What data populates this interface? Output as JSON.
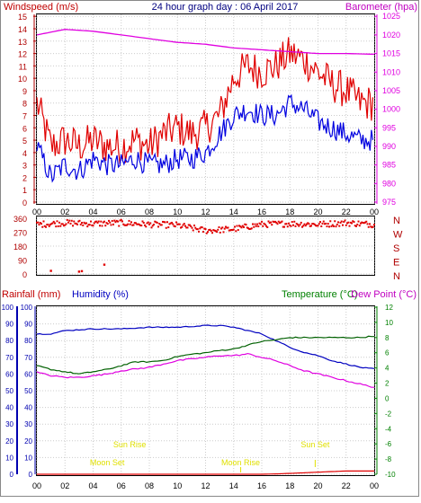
{
  "header": {
    "left_label": "Windspeed (m/s)",
    "title": "24 hour graph day : 06 April 2017",
    "right_label": "Barometer (hpa)"
  },
  "bottom_header": {
    "rainfall_label": "Rainfall (mm)",
    "humidity_label": "Humidity (%)",
    "temperature_label": "Temperature (°C)",
    "dewpoint_label": "Dew Point (°C)"
  },
  "colors": {
    "wind_max": "#e00000",
    "wind_avg": "#0000e0",
    "barometer": "#e000e0",
    "direction": "#e00000",
    "rain_axis": "#0000b0",
    "humidity_line": "#0000c0",
    "temperature": "#006000",
    "dewpoint": "#e000e0",
    "rain_line": "#e00000",
    "sun_moon": "#e0e000",
    "temp_axis": "#008000",
    "left_axis_red": "#b00000"
  },
  "chart_data": [
    {
      "type": "line",
      "x_tick_labels": [
        "00",
        "02",
        "04",
        "06",
        "08",
        "10",
        "12",
        "14",
        "16",
        "18",
        "20",
        "22",
        "00"
      ],
      "y_left_ticks": [
        "0",
        "1",
        "2",
        "3",
        "4",
        "5",
        "6",
        "7",
        "8",
        "9",
        "10",
        "11",
        "12",
        "13",
        "14",
        "15"
      ],
      "y_right_ticks": [
        "975",
        "980",
        "985",
        "990",
        "995",
        "1000",
        "1005",
        "1010",
        "1015",
        "1020",
        "1025"
      ],
      "ylim_left": [
        0,
        15
      ],
      "ylim_right": [
        975,
        1025
      ],
      "grid": true,
      "series": [
        {
          "values_hours": [
            0,
            1,
            2,
            3,
            4,
            5,
            6,
            7,
            8,
            9,
            10,
            11,
            12,
            13,
            14,
            15,
            16,
            17,
            18,
            19,
            20,
            21,
            22,
            23,
            24
          ],
          "values": [
            8,
            4.5,
            5,
            4.5,
            5,
            4.5,
            4.5,
            5,
            4.5,
            5.5,
            6,
            5.5,
            6,
            7,
            10,
            11,
            10.5,
            11,
            12,
            11.5,
            10.5,
            9.5,
            9,
            8,
            8
          ]
        },
        {
          "values_hours": [
            0,
            1,
            2,
            3,
            4,
            5,
            6,
            7,
            8,
            9,
            10,
            11,
            12,
            13,
            14,
            15,
            16,
            17,
            18,
            19,
            20,
            21,
            22,
            23,
            24
          ],
          "values": [
            4.5,
            2,
            3,
            2.5,
            3.5,
            3,
            3,
            3.5,
            3,
            3,
            3.5,
            3.5,
            4,
            5.5,
            7,
            7.5,
            7,
            7,
            8,
            7.5,
            6.5,
            6,
            5.5,
            5,
            5
          ]
        },
        {
          "values_hours": [
            0,
            2,
            4,
            6,
            8,
            10,
            12,
            14,
            16,
            18,
            20,
            22,
            24
          ],
          "values": [
            1020,
            1021.5,
            1021,
            1020,
            1019,
            1018,
            1017.5,
            1016.5,
            1016,
            1015.5,
            1015,
            1015,
            1014.8
          ]
        }
      ]
    },
    {
      "type": "scatter",
      "y_ticks": [
        "0",
        "90",
        "180",
        "270",
        "360"
      ],
      "y_right_labels": [
        "N",
        "W",
        "S",
        "E",
        "N"
      ],
      "ylim": [
        0,
        360
      ],
      "points_hours": [
        1,
        3,
        3.2,
        4.8
      ],
      "points_values": [
        20,
        15,
        18,
        60
      ],
      "band_hours": [
        0,
        2,
        4,
        6,
        8,
        10,
        12,
        14,
        16,
        18,
        20,
        22,
        24
      ],
      "band_values": [
        320,
        330,
        325,
        330,
        320,
        315,
        280,
        290,
        320,
        325,
        320,
        330,
        320
      ]
    },
    {
      "type": "line",
      "x_tick_labels": [
        "00",
        "02",
        "04",
        "06",
        "08",
        "10",
        "12",
        "14",
        "16",
        "18",
        "20",
        "22",
        "00"
      ],
      "y_left_ticks": [
        "0",
        "10",
        "20",
        "30",
        "40",
        "50",
        "60",
        "70",
        "80",
        "90",
        "100"
      ],
      "y_right_ticks": [
        "-10",
        "-8",
        "-6",
        "-4",
        "-2",
        "0",
        "2",
        "4",
        "6",
        "8",
        "10",
        "12"
      ],
      "ylim_left": [
        0,
        100
      ],
      "ylim_right": [
        -10,
        12
      ],
      "series": [
        {
          "values_hours": [
            0,
            1,
            2,
            4,
            6,
            8,
            10,
            12,
            13,
            14,
            15,
            16,
            17,
            18,
            19,
            20,
            21,
            22,
            23,
            24
          ],
          "values": [
            84,
            84,
            86,
            87,
            87,
            88,
            88,
            89,
            89,
            88,
            86,
            84,
            80,
            76,
            73,
            71,
            68,
            66,
            64,
            63
          ]
        },
        {
          "values_hours": [
            0,
            1,
            2,
            3,
            4,
            5,
            6,
            7,
            8,
            9,
            10,
            11,
            12,
            13,
            14,
            15,
            16,
            17,
            18,
            19,
            20,
            21,
            22,
            23,
            24
          ],
          "values": [
            4.3,
            3.8,
            3.5,
            3.2,
            3.5,
            3.8,
            4.3,
            4.8,
            4.8,
            5,
            5.5,
            5.8,
            6,
            6.3,
            6.5,
            7,
            7.5,
            7.7,
            8,
            8,
            8,
            8,
            8,
            8,
            8.2
          ]
        },
        {
          "values_hours": [
            0,
            1,
            2,
            3,
            4,
            5,
            6,
            7,
            8,
            9,
            10,
            11,
            12,
            13,
            14,
            15,
            16,
            17,
            18,
            19,
            20,
            21,
            22,
            23,
            24
          ],
          "values": [
            61,
            59,
            58,
            58,
            59,
            60,
            62,
            63,
            64,
            66,
            68,
            69,
            70,
            71,
            71,
            72,
            70,
            68,
            65,
            62,
            60,
            58,
            56,
            54,
            52
          ]
        },
        {
          "values_hours": [
            0,
            16,
            17,
            18,
            19,
            20,
            21,
            22,
            23,
            24
          ],
          "values": [
            0,
            0,
            0.2,
            0.5,
            0.8,
            1.2,
            1.5,
            1.8,
            1.8,
            1.8
          ]
        }
      ],
      "annotations": [
        {
          "label": "Sun Rise",
          "hour": 6.6
        },
        {
          "label": "Sun Set",
          "hour": 19.8
        },
        {
          "label": "Moon Set",
          "hour": 5
        },
        {
          "label": "Moon Rise",
          "hour": 14.5
        }
      ]
    }
  ]
}
